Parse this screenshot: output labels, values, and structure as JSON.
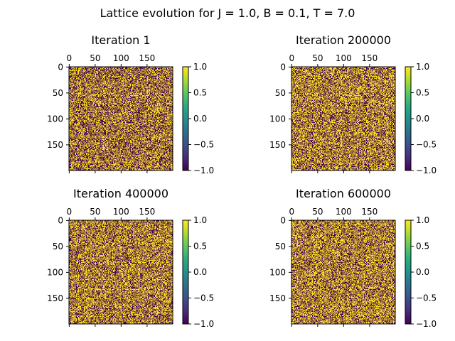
{
  "figure": {
    "suptitle": "Lattice evolution for J = 1.0, B = 0.1, T = 7.0"
  },
  "colors": {
    "colormap": "viridis",
    "spin_up": "#fde725",
    "spin_down": "#440154",
    "axes": "#000000",
    "background": "#ffffff"
  },
  "chart_data": [
    {
      "type": "heatmap",
      "title": "Iteration 1",
      "lattice_size": 200,
      "values": [
        -1,
        1
      ],
      "x_ticks": [
        "0",
        "50",
        "100",
        "150"
      ],
      "y_ticks": [
        "0",
        "50",
        "100",
        "150"
      ],
      "x_axis_position": "top",
      "xlim": [
        0,
        199
      ],
      "ylim": [
        199,
        0
      ],
      "colorbar": {
        "ticks": [
          "1.0",
          "0.5",
          "0.0",
          "−0.5",
          "−1.0"
        ],
        "range": [
          -1.0,
          1.0
        ]
      },
      "fraction_up": 0.5
    },
    {
      "type": "heatmap",
      "title": "Iteration 200000",
      "lattice_size": 200,
      "values": [
        -1,
        1
      ],
      "x_ticks": [
        "0",
        "50",
        "100",
        "150"
      ],
      "y_ticks": [
        "0",
        "50",
        "100",
        "150"
      ],
      "x_axis_position": "top",
      "xlim": [
        0,
        199
      ],
      "ylim": [
        199,
        0
      ],
      "colorbar": {
        "ticks": [
          "1.0",
          "0.5",
          "0.0",
          "−0.5",
          "−1.0"
        ],
        "range": [
          -1.0,
          1.0
        ]
      },
      "fraction_up": 0.54
    },
    {
      "type": "heatmap",
      "title": "Iteration 400000",
      "lattice_size": 200,
      "values": [
        -1,
        1
      ],
      "x_ticks": [
        "0",
        "50",
        "100",
        "150"
      ],
      "y_ticks": [
        "0",
        "50",
        "100",
        "150"
      ],
      "x_axis_position": "top",
      "xlim": [
        0,
        199
      ],
      "ylim": [
        199,
        0
      ],
      "colorbar": {
        "ticks": [
          "1.0",
          "0.5",
          "0.0",
          "−0.5",
          "−1.0"
        ],
        "range": [
          -1.0,
          1.0
        ]
      },
      "fraction_up": 0.53
    },
    {
      "type": "heatmap",
      "title": "Iteration 600000",
      "lattice_size": 200,
      "values": [
        -1,
        1
      ],
      "x_ticks": [
        "0",
        "50",
        "100",
        "150"
      ],
      "y_ticks": [
        "0",
        "50",
        "100",
        "150"
      ],
      "x_axis_position": "top",
      "xlim": [
        0,
        199
      ],
      "ylim": [
        199,
        0
      ],
      "colorbar": {
        "ticks": [
          "1.0",
          "0.5",
          "0.0",
          "−0.5",
          "−1.0"
        ],
        "range": [
          -1.0,
          1.0
        ]
      },
      "fraction_up": 0.54
    }
  ]
}
